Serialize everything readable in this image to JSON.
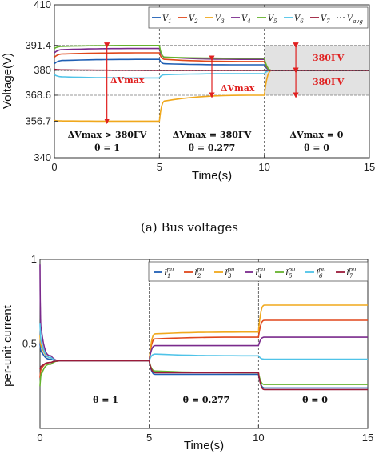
{
  "caption_a": "(a) Bus voltages",
  "chart_data": [
    {
      "type": "line",
      "xlabel": "Time(s)",
      "ylabel": "Voltage(V)",
      "xlim": [
        0,
        15
      ],
      "ylim": [
        340,
        410
      ],
      "xticks": [
        0,
        5,
        10,
        15
      ],
      "yticks": [
        340,
        356.7,
        368.6,
        380,
        391.4,
        410
      ],
      "ytick_labels": [
        "340",
        "356.7",
        "368.6",
        "380",
        "391.4",
        "410"
      ],
      "legend": [
        "V1",
        "V2",
        "V3",
        "V4",
        "V5",
        "V6",
        "V7",
        "Vavg"
      ],
      "legend_labels": [
        {
          "base": "V",
          "sub": "1"
        },
        {
          "base": "V",
          "sub": "2"
        },
        {
          "base": "V",
          "sub": "3"
        },
        {
          "base": "V",
          "sub": "4"
        },
        {
          "base": "V",
          "sub": "5"
        },
        {
          "base": "V",
          "sub": "6"
        },
        {
          "base": "V",
          "sub": "7"
        },
        {
          "base": "V",
          "sub": "avg"
        }
      ],
      "colors": [
        "#1f5fb4",
        "#e0471b",
        "#f0a81c",
        "#7a2a8c",
        "#66b32e",
        "#4fc3e8",
        "#9b1b3a"
      ],
      "series": [
        {
          "name": "V1",
          "x": [
            0,
            0.5,
            5,
            5.3,
            10,
            10.4,
            15
          ],
          "y": [
            383,
            384.5,
            385,
            383,
            382.5,
            380,
            380
          ]
        },
        {
          "name": "V2",
          "x": [
            0,
            0.5,
            5,
            5.3,
            10,
            10.4,
            15
          ],
          "y": [
            386,
            387.5,
            388,
            385,
            384,
            380,
            380
          ]
        },
        {
          "name": "V3",
          "x": [
            0,
            0.5,
            5,
            5.3,
            10,
            10.4,
            15
          ],
          "y": [
            357,
            356.8,
            356.7,
            366,
            368.6,
            380,
            380
          ]
        },
        {
          "name": "V4",
          "x": [
            0,
            0.5,
            5,
            5.3,
            10,
            10.4,
            15
          ],
          "y": [
            388,
            389.5,
            390,
            386,
            385,
            380,
            380
          ]
        },
        {
          "name": "V5",
          "x": [
            0,
            0.5,
            5,
            5.3,
            10,
            10.4,
            15
          ],
          "y": [
            390,
            391,
            391.4,
            386,
            385.5,
            380,
            380
          ]
        },
        {
          "name": "V6",
          "x": [
            0,
            0.5,
            5,
            5.3,
            10,
            10.4,
            15
          ],
          "y": [
            378,
            377,
            376.5,
            378,
            378.5,
            380,
            380
          ]
        },
        {
          "name": "V7",
          "x": [
            0,
            0.5,
            5,
            5.3,
            10,
            10.4,
            15
          ],
          "y": [
            380.5,
            380.2,
            380,
            380,
            380,
            380,
            380
          ]
        },
        {
          "name": "Vavg",
          "x": [
            0,
            15
          ],
          "y": [
            380,
            380
          ]
        }
      ],
      "annotations": {
        "dvmax": "ΔVmax",
        "band_label_top": "380ΓV",
        "band_label_bottom": "380ΓV",
        "region1_line1": "ΔVmax > 380ΓV",
        "region1_line2": "θ = 1",
        "region2_line1": "ΔVmax = 380ΓV",
        "region2_line2": "θ = 0.277",
        "region3_line1": "ΔVmax = 0",
        "region3_line2": "θ = 0"
      }
    },
    {
      "type": "line",
      "xlabel": "Time(s)",
      "ylabel": "per-unit current",
      "xlim": [
        0,
        15
      ],
      "ylim": [
        0,
        1
      ],
      "xticks": [
        0,
        5,
        10,
        15
      ],
      "yticks": [
        0.5,
        1
      ],
      "ytick_labels": [
        "0.5",
        "1"
      ],
      "legend": [
        "I1pu",
        "I2pu",
        "I3pu",
        "I4pu",
        "I5pu",
        "I6pu",
        "I7pu"
      ],
      "legend_labels": [
        {
          "base": "I",
          "sub": "1",
          "sup": "pu"
        },
        {
          "base": "I",
          "sub": "2",
          "sup": "pu"
        },
        {
          "base": "I",
          "sub": "3",
          "sup": "pu"
        },
        {
          "base": "I",
          "sub": "4",
          "sup": "pu"
        },
        {
          "base": "I",
          "sub": "5",
          "sup": "pu"
        },
        {
          "base": "I",
          "sub": "6",
          "sup": "pu"
        },
        {
          "base": "I",
          "sub": "7",
          "sup": "pu"
        }
      ],
      "colors": [
        "#1f5fb4",
        "#e0471b",
        "#f0a81c",
        "#7a2a8c",
        "#66b32e",
        "#4fc3e8",
        "#9b1b3a"
      ],
      "series": [
        {
          "name": "I1pu",
          "x": [
            0,
            0.1,
            0.5,
            1,
            5,
            5.3,
            10,
            10.3,
            15
          ],
          "y": [
            0.5,
            0.45,
            0.41,
            0.4,
            0.4,
            0.32,
            0.32,
            0.24,
            0.24
          ]
        },
        {
          "name": "I2pu",
          "x": [
            0,
            0.1,
            0.5,
            1,
            5,
            5.3,
            10,
            10.3,
            15
          ],
          "y": [
            0.3,
            0.36,
            0.39,
            0.4,
            0.4,
            0.53,
            0.54,
            0.64,
            0.64
          ]
        },
        {
          "name": "I3pu",
          "x": [
            0,
            0.1,
            0.5,
            1,
            5,
            5.3,
            10,
            10.3,
            15
          ],
          "y": [
            0.55,
            0.48,
            0.42,
            0.4,
            0.4,
            0.56,
            0.57,
            0.73,
            0.73
          ]
        },
        {
          "name": "I4pu",
          "x": [
            0,
            0.05,
            0.5,
            1,
            5,
            5.3,
            10,
            10.3,
            15
          ],
          "y": [
            0.97,
            0.6,
            0.43,
            0.4,
            0.4,
            0.49,
            0.49,
            0.54,
            0.54
          ]
        },
        {
          "name": "I5pu",
          "x": [
            0,
            0.1,
            0.5,
            1,
            5,
            5.3,
            10,
            10.3,
            15
          ],
          "y": [
            0.25,
            0.33,
            0.38,
            0.4,
            0.4,
            0.34,
            0.33,
            0.26,
            0.26
          ]
        },
        {
          "name": "I6pu",
          "x": [
            0,
            0.1,
            0.5,
            1,
            5,
            5.3,
            10,
            10.3,
            15
          ],
          "y": [
            0.62,
            0.5,
            0.42,
            0.4,
            0.4,
            0.44,
            0.43,
            0.41,
            0.41
          ]
        },
        {
          "name": "I7pu",
          "x": [
            0,
            0.1,
            0.5,
            1,
            5,
            5.3,
            10,
            10.3,
            15
          ],
          "y": [
            0.35,
            0.37,
            0.39,
            0.4,
            0.4,
            0.33,
            0.33,
            0.23,
            0.23
          ]
        }
      ],
      "annotations": {
        "region1": "θ = 1",
        "region2": "θ = 0.277",
        "region3": "θ = 0"
      }
    }
  ]
}
